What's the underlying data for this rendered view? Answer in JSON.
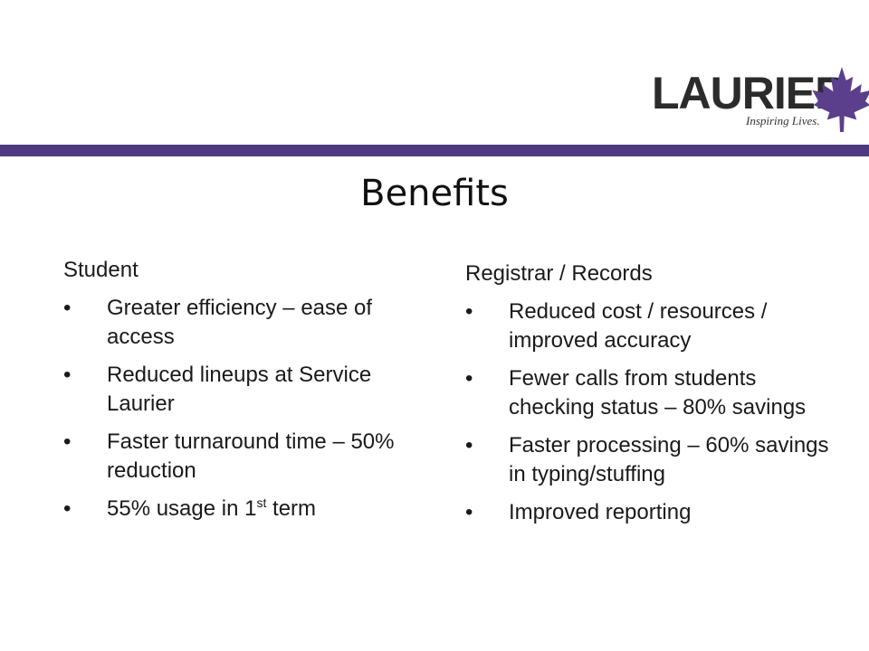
{
  "logo": {
    "wordmark": "LAURIER",
    "tagline": "Inspiring Lives.",
    "icon": "maple-leaf-icon",
    "accent_color": "#5b3f8c"
  },
  "rule_color": "#4d3a82",
  "title": "Benefits",
  "student": {
    "heading": "Student",
    "items": [
      "Greater efficiency – ease of access",
      "Reduced lineups at Service Laurier",
      "Faster turnaround time – 50% reduction"
    ],
    "last_item": {
      "prefix": "55% usage in 1",
      "superscript": "st",
      "suffix": " term"
    }
  },
  "registrar": {
    "heading": "Registrar / Records",
    "items": [
      "Reduced cost / resources / improved accuracy",
      "Fewer calls from students checking status – 80% savings",
      "Faster processing – 60% savings in typing/stuffing",
      "Improved reporting"
    ]
  }
}
